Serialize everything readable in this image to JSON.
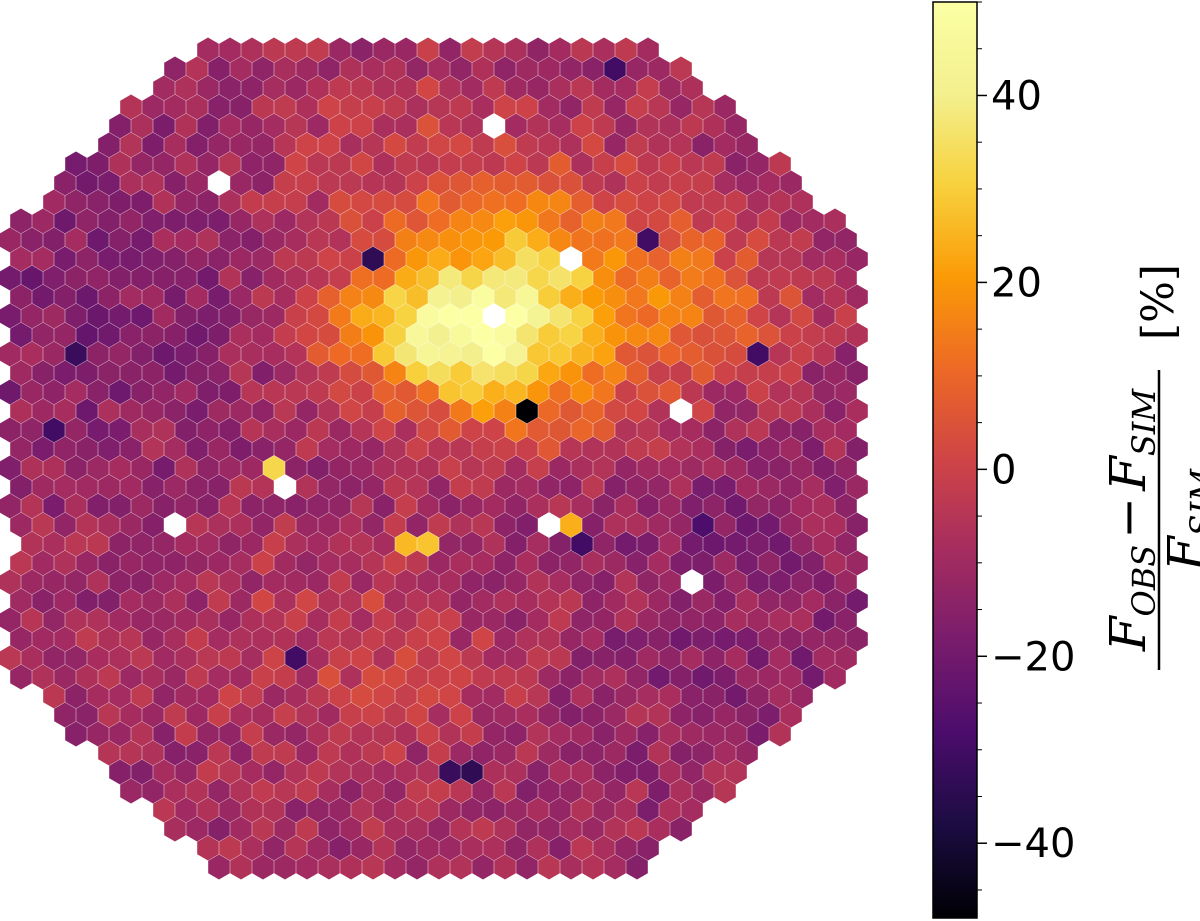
{
  "chart_data": {
    "type": "heatmap",
    "subtype": "hexagonal-camera-map",
    "title": "",
    "xlabel": "",
    "ylabel": "",
    "colormap": "inferno",
    "value_range": [
      -48,
      50
    ],
    "missing_color": "#ffffff",
    "colorbar": {
      "orientation": "vertical",
      "placement": "right",
      "ticks": [
        40,
        20,
        0,
        -20,
        -40
      ],
      "tick_labels": [
        "40",
        "20",
        "0",
        "−20",
        "−40"
      ],
      "label": {
        "numerator_left": "F",
        "numerator_left_sub": "OBS",
        "minus": "−",
        "numerator_right": "F",
        "numerator_right_sub": "SIM",
        "denominator": "F",
        "denominator_sub": "SIM",
        "unit": "[%]"
      }
    },
    "features": [
      {
        "region": "upper-centre cluster",
        "value": 35
      },
      {
        "region": "left of upper cluster",
        "value": 25
      },
      {
        "region": "right wing",
        "value": 18
      },
      {
        "region": "lower-left rim",
        "value": -14
      },
      {
        "region": "lower-right rim",
        "value": -12
      },
      {
        "region": "lower-centre",
        "value": -4
      }
    ],
    "isolated_cells": [
      {
        "ix": 23,
        "iy": 19,
        "value": -48
      },
      {
        "ix": 12,
        "iy": 22,
        "value": 32
      },
      {
        "ix": 18,
        "iy": 26,
        "value": 26
      },
      {
        "ix": 19,
        "iy": 26,
        "value": 28
      },
      {
        "ix": 25,
        "iy": 25,
        "value": 24
      },
      {
        "ix": 3,
        "iy": 16,
        "value": -32
      },
      {
        "ix": 2,
        "iy": 20,
        "value": -30
      },
      {
        "ix": 16,
        "iy": 11,
        "value": -34
      },
      {
        "ix": 29,
        "iy": 10,
        "value": -30
      },
      {
        "ix": 34,
        "iy": 16,
        "value": -30
      },
      {
        "ix": 20,
        "iy": 38,
        "value": -32
      },
      {
        "ix": 21,
        "iy": 38,
        "value": -34
      },
      {
        "ix": 13,
        "iy": 32,
        "value": -30
      },
      {
        "ix": 26,
        "iy": 26,
        "value": -30
      },
      {
        "ix": 31,
        "iy": 25,
        "value": -28
      },
      {
        "ix": 27,
        "iy": 1,
        "value": -30
      }
    ],
    "missing_cells": [
      {
        "ix": 22,
        "iy": 4
      },
      {
        "ix": 9,
        "iy": 7
      },
      {
        "ix": 25,
        "iy": 11
      },
      {
        "ix": 22,
        "iy": 14
      },
      {
        "ix": 30,
        "iy": 19
      },
      {
        "ix": 12,
        "iy": 23
      },
      {
        "ix": 7,
        "iy": 25
      },
      {
        "ix": 24,
        "iy": 25
      },
      {
        "ix": 0,
        "iy": 26
      },
      {
        "ix": 31,
        "iy": 28
      }
    ]
  }
}
